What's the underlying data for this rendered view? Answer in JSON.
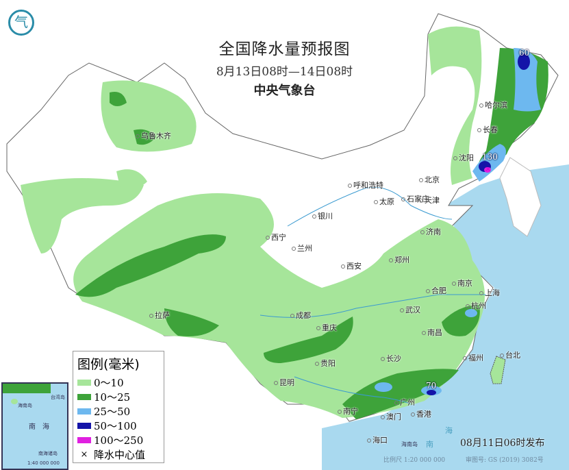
{
  "header": {
    "title": "全国降水量预报图",
    "period": "8月13日08时—14日08时",
    "issuer": "中央气象台"
  },
  "logo": {
    "icon": "cma-logo",
    "glyph": "气"
  },
  "colors": {
    "sea": "#a9d9ef",
    "rain_0_10": "#a6e59a",
    "rain_10_25": "#3ea33a",
    "rain_25_50": "#6db8ef",
    "rain_50_100": "#1414a8",
    "rain_100_250": "#e020e0"
  },
  "legend": {
    "title": "图例(毫米)",
    "items": [
      {
        "label": "0～10",
        "color": "#a6e59a"
      },
      {
        "label": "10～25",
        "color": "#3ea33a"
      },
      {
        "label": "25～50",
        "color": "#6db8ef"
      },
      {
        "label": "50～100",
        "color": "#1414a8"
      },
      {
        "label": "100～250",
        "color": "#e020e0"
      }
    ],
    "center_label": "降水中心值",
    "center_symbol": "×"
  },
  "cities": [
    "乌鲁木齐",
    "拉萨",
    "西宁",
    "兰州",
    "银川",
    "呼和浩特",
    "北京",
    "天津",
    "太原",
    "石家庄",
    "济南",
    "郑州",
    "西安",
    "成都",
    "重庆",
    "贵阳",
    "昆明",
    "南宁",
    "广州",
    "澳门",
    "香港",
    "海口",
    "长沙",
    "南昌",
    "武汉",
    "合肥",
    "南京",
    "上海",
    "杭州",
    "福州",
    "台北",
    "哈尔滨",
    "长春",
    "沈阳"
  ],
  "rain_centers": [
    "60",
    "130",
    "70"
  ],
  "inset": {
    "labels": [
      "海南岛",
      "台湾岛",
      "南",
      "海",
      "南海诸岛",
      "1:40 000 000"
    ]
  },
  "sea_labels": [
    "海南岛",
    "南",
    "海"
  ],
  "footer": {
    "issue_time": "08月11日06时发布",
    "scale": "比例尺 1:20 000 000",
    "map_number": "审图号: GS (2019) 3082号"
  }
}
